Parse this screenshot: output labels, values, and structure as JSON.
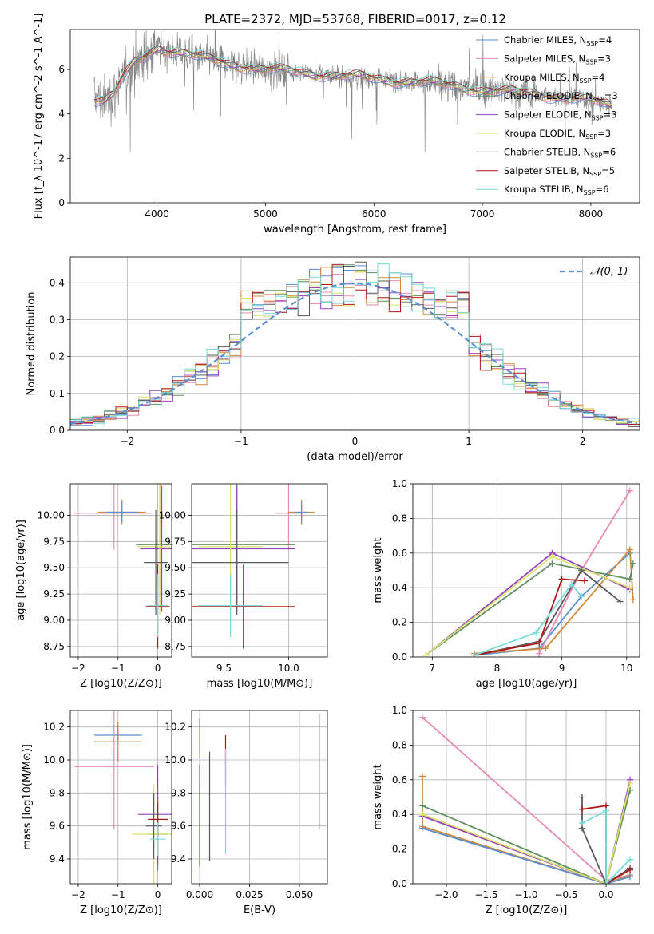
{
  "figure_title": "PLATE=2372, MJD=53768, FIBERID=0017, z=0.12",
  "colors": {
    "Chabrier MILES": "#5b8fd0",
    "Salpeter MILES": "#e88ab5",
    "Kroupa MILES": "#d08a3a",
    "Chabrier ELODIE": "#5f8f5f",
    "Salpeter ELODIE": "#9a3fbf",
    "Kroupa ELODIE": "#d9e36a",
    "Chabrier STELIB": "#5a5a5a",
    "Salpeter STELIB": "#b01818",
    "Kroupa STELIB": "#79dada",
    "data": "#808080",
    "normal": "#5b8fd0"
  },
  "chart_data": [
    {
      "id": "spectrum",
      "type": "line",
      "title": "PLATE=2372, MJD=53768, FIBERID=0017, z=0.12",
      "xlabel": "wavelength [Angstrom, rest frame]",
      "ylabel": "Flux [f_λ 10^-17 erg cm^-2 s^-1 A^-1]",
      "xlim": [
        3200,
        8450
      ],
      "ylim": [
        0,
        7.8
      ],
      "xticks": [
        4000,
        5000,
        6000,
        7000,
        8000
      ],
      "yticks": [
        0,
        2,
        4,
        6
      ],
      "legend": [
        "Chabrier MILES, N_SSP=4",
        "Salpeter MILES, N_SSP=3",
        "Kroupa MILES, N_SSP=4",
        "Chabrier ELODIE, N_SSP=3",
        "Salpeter ELODIE, N_SSP=3",
        "Kroupa ELODIE, N_SSP=3",
        "Chabrier STELIB, N_SSP=6",
        "Salpeter STELIB, N_SSP=5",
        "Kroupa STELIB, N_SSP=6"
      ],
      "legend_placement": "right",
      "continuum": {
        "x": [
          3420,
          3500,
          3600,
          3700,
          3800,
          3900,
          4000,
          4200,
          4500,
          5000,
          5500,
          6000,
          6500,
          7000,
          7200,
          7500,
          8000,
          8200
        ],
        "y": [
          4.7,
          4.6,
          4.9,
          5.7,
          6.3,
          6.6,
          7.0,
          6.8,
          6.4,
          6.0,
          5.8,
          5.6,
          5.4,
          5.1,
          5.0,
          4.9,
          4.6,
          4.4
        ]
      }
    },
    {
      "id": "residuals",
      "type": "step",
      "xlabel": "(data-model)/error",
      "ylabel": "Normed distribution",
      "xlim": [
        -2.5,
        2.5
      ],
      "ylim": [
        0,
        0.47
      ],
      "xticks": [
        -2,
        -1,
        0,
        1,
        2
      ],
      "yticks": [
        0.0,
        0.1,
        0.2,
        0.3,
        0.4
      ],
      "legend": [
        "N(0,1)"
      ],
      "legend_placement": "top-right",
      "series_count": 9
    },
    {
      "id": "age_vs_Z",
      "type": "errorbar",
      "xlabel": "Z [log10(Z/Z⊙)]",
      "ylabel": "age  [log10(age/yr)]",
      "xlim": [
        -2.2,
        0.35
      ],
      "ylim": [
        8.65,
        10.3
      ],
      "xticks": [
        -2,
        -1,
        0
      ],
      "yticks": [
        8.75,
        9.0,
        9.25,
        9.5,
        9.75,
        10.0
      ],
      "points": [
        {
          "model": "Salpeter MILES",
          "x": -1.1,
          "xerr": 1.0,
          "y": 10.02,
          "yerr": 0.35
        },
        {
          "model": "Kroupa MILES",
          "x": -0.9,
          "xerr": 0.6,
          "y": 10.03,
          "yerr": 0.12
        },
        {
          "model": "Chabrier MILES",
          "x": -0.9,
          "xerr": 0.4,
          "y": 10.03,
          "yerr": 0.1
        },
        {
          "model": "Chabrier ELODIE",
          "x": 0.05,
          "xerr": 0.6,
          "y": 9.72,
          "yerr": 0.6
        },
        {
          "model": "Salpeter ELODIE",
          "x": 0.1,
          "xerr": 0.55,
          "y": 9.68,
          "yerr": 0.6
        },
        {
          "model": "Kroupa ELODIE",
          "x": 0.05,
          "xerr": 0.55,
          "y": 9.7,
          "yerr": 0.65
        },
        {
          "model": "Chabrier STELIB",
          "x": -0.05,
          "xerr": 0.3,
          "y": 9.55,
          "yerr": 0.5
        },
        {
          "model": "Salpeter STELIB",
          "x": 0.0,
          "xerr": 0.3,
          "y": 9.13,
          "yerr": 0.4
        },
        {
          "model": "Kroupa STELIB",
          "x": 0.0,
          "xerr": 0.25,
          "y": 9.14,
          "yerr": 0.3
        }
      ]
    },
    {
      "id": "age_vs_mass",
      "type": "errorbar",
      "xlabel": "mass [log10(M/M⊙)]",
      "ylabel": "",
      "xlim": [
        9.25,
        10.3
      ],
      "ylim": [
        8.65,
        10.3
      ],
      "xticks": [
        9.5,
        10.0
      ],
      "yticks": [
        8.75,
        9.0,
        9.25,
        9.5,
        9.75,
        10.0
      ],
      "points": [
        {
          "model": "Salpeter MILES",
          "x": 10.0,
          "xerr": 0.1,
          "y": 10.02,
          "yerr": 0.35
        },
        {
          "model": "Kroupa MILES",
          "x": 10.1,
          "xerr": 0.1,
          "y": 10.03,
          "yerr": 0.12
        },
        {
          "model": "Chabrier MILES",
          "x": 10.1,
          "xerr": 0.05,
          "y": 10.03,
          "yerr": 0.1
        },
        {
          "model": "Chabrier ELODIE",
          "x": 9.6,
          "xerr": 0.45,
          "y": 9.72,
          "yerr": 0.6
        },
        {
          "model": "Salpeter ELODIE",
          "x": 9.6,
          "xerr": 0.45,
          "y": 9.68,
          "yerr": 0.6
        },
        {
          "model": "Kroupa ELODIE",
          "x": 9.55,
          "xerr": 0.25,
          "y": 9.7,
          "yerr": 0.7
        },
        {
          "model": "Chabrier STELIB",
          "x": 9.6,
          "xerr": 0.4,
          "y": 9.55,
          "yerr": 0.5
        },
        {
          "model": "Salpeter STELIB",
          "x": 9.65,
          "xerr": 0.4,
          "y": 9.13,
          "yerr": 0.4
        },
        {
          "model": "Kroupa STELIB",
          "x": 9.55,
          "xerr": 0.25,
          "y": 9.14,
          "yerr": 0.3
        }
      ]
    },
    {
      "id": "weight_vs_age",
      "type": "line",
      "xlabel": "age  [log10(age/yr)]",
      "ylabel": "mass weight",
      "xlim": [
        6.7,
        10.2
      ],
      "ylim": [
        0,
        1.0
      ],
      "xticks": [
        7,
        8,
        9,
        10
      ],
      "yticks": [
        0.0,
        0.2,
        0.4,
        0.6,
        0.8,
        1.0
      ],
      "series": [
        {
          "model": "Chabrier MILES",
          "x": [
            7.65,
            8.65,
            9.3,
            10.05
          ],
          "y": [
            0.01,
            0.05,
            0.35,
            0.6
          ]
        },
        {
          "model": "Salpeter MILES",
          "x": [
            8.65,
            9.3,
            10.05
          ],
          "y": [
            0.02,
            0.5,
            0.96
          ]
        },
        {
          "model": "Kroupa MILES",
          "x": [
            7.65,
            8.75,
            10.05,
            10.1
          ],
          "y": [
            0.02,
            0.05,
            0.62,
            0.33
          ]
        },
        {
          "model": "Chabrier ELODIE",
          "x": [
            6.9,
            8.85,
            10.05,
            10.1
          ],
          "y": [
            0.01,
            0.54,
            0.45,
            0.54
          ]
        },
        {
          "model": "Salpeter ELODIE",
          "x": [
            6.9,
            8.85,
            10.05
          ],
          "y": [
            0.01,
            0.6,
            0.39
          ]
        },
        {
          "model": "Kroupa ELODIE",
          "x": [
            6.9,
            8.85,
            10.05
          ],
          "y": [
            0.01,
            0.58,
            0.4
          ]
        },
        {
          "model": "Chabrier STELIB",
          "x": [
            7.65,
            8.65,
            9.3,
            9.9
          ],
          "y": [
            0.01,
            0.09,
            0.5,
            0.32
          ]
        },
        {
          "model": "Salpeter STELIB",
          "x": [
            7.65,
            8.65,
            9.0,
            9.35
          ],
          "y": [
            0.01,
            0.08,
            0.45,
            0.44
          ]
        },
        {
          "model": "Kroupa STELIB",
          "x": [
            7.65,
            8.6,
            9.15,
            9.3
          ],
          "y": [
            0.01,
            0.14,
            0.42,
            0.35
          ]
        }
      ]
    },
    {
      "id": "mass_vs_Z",
      "type": "errorbar",
      "xlabel": "Z [log10(Z/Z⊙)]",
      "ylabel": "mass [log10(M/M⊙)]",
      "xlim": [
        -2.2,
        0.35
      ],
      "ylim": [
        9.25,
        10.3
      ],
      "xticks": [
        -2,
        -1,
        0
      ],
      "yticks": [
        9.4,
        9.6,
        9.8,
        10.0,
        10.2
      ],
      "points": [
        {
          "model": "Chabrier MILES",
          "x": -1.0,
          "xerr": 0.6,
          "y": 10.15,
          "yerr": 0.05
        },
        {
          "model": "Salpeter MILES",
          "x": -1.1,
          "xerr": 1.0,
          "y": 9.96,
          "yerr": 0.38
        },
        {
          "model": "Kroupa MILES",
          "x": -1.0,
          "xerr": 0.6,
          "y": 10.11,
          "yerr": 0.12
        },
        {
          "model": "Chabrier ELODIE",
          "x": 0.0,
          "xerr": 0.25,
          "y": 9.55,
          "yerr": 0.22
        },
        {
          "model": "Salpeter ELODIE",
          "x": 0.0,
          "xerr": 0.5,
          "y": 9.67,
          "yerr": 0.3
        },
        {
          "model": "Kroupa ELODIE",
          "x": -0.1,
          "xerr": 0.55,
          "y": 9.55,
          "yerr": 0.3
        },
        {
          "model": "Chabrier STELIB",
          "x": -0.1,
          "xerr": 0.2,
          "y": 9.6,
          "yerr": 0.2
        },
        {
          "model": "Salpeter STELIB",
          "x": 0.0,
          "xerr": 0.25,
          "y": 9.64,
          "yerr": 0.1
        },
        {
          "model": "Kroupa STELIB",
          "x": 0.0,
          "xerr": 0.2,
          "y": 9.52,
          "yerr": 0.1
        }
      ]
    },
    {
      "id": "mass_vs_ebv",
      "type": "errorbar",
      "xlabel": "E(B-V)",
      "ylabel": "",
      "xlim": [
        -0.004,
        0.064
      ],
      "ylim": [
        9.25,
        10.3
      ],
      "xticks": [
        0.0,
        0.025,
        0.05
      ],
      "xtick_labels": [
        "0.000",
        "0.025",
        "0.050"
      ],
      "yticks": [
        9.4,
        9.6,
        9.8,
        10.0,
        10.2
      ],
      "points": [
        {
          "model": "Chabrier MILES",
          "x": 0.0,
          "y": 10.15,
          "yerr": 0.1
        },
        {
          "model": "Kroupa MILES",
          "x": 0.0,
          "y": 10.11,
          "yerr": 0.1
        },
        {
          "model": "Salpeter MILES",
          "x": 0.06,
          "y": 9.93,
          "yerr": 0.35
        },
        {
          "model": "Kroupa ELODIE",
          "x": 0.0,
          "y": 9.55,
          "yerr": 0.28
        },
        {
          "model": "Salpeter ELODIE",
          "x": 0.0,
          "y": 9.67,
          "yerr": 0.3
        },
        {
          "model": "Chabrier ELODIE",
          "x": 0.0,
          "y": 9.6,
          "yerr": 0.25
        },
        {
          "model": "Chabrier STELIB",
          "x": 0.005,
          "y": 9.72,
          "yerr": 0.33
        },
        {
          "model": "Salpeter STELIB",
          "x": 0.013,
          "y": 10.0,
          "yerr": 0.15
        },
        {
          "model": "Kroupa STELIB",
          "x": 0.013,
          "y": 9.75,
          "yerr": 0.32
        }
      ]
    },
    {
      "id": "weight_vs_Z",
      "type": "line",
      "xlabel": "Z [log10(Z/Z⊙)]",
      "ylabel": "mass weight",
      "xlim": [
        -2.42,
        0.42
      ],
      "ylim": [
        0,
        1.0
      ],
      "xticks": [
        -2.0,
        -1.5,
        -1.0,
        -0.5,
        0.0
      ],
      "xtick_labels": [
        "−2.0",
        "−1.5",
        "−1.0",
        "−0.5",
        "0.0"
      ],
      "yticks": [
        0.0,
        0.2,
        0.4,
        0.6,
        0.8,
        1.0
      ],
      "series": [
        {
          "model": "Salpeter MILES",
          "x": [
            -2.3,
            0.0,
            0.3
          ],
          "y": [
            0.96,
            0.02,
            0.05
          ]
        },
        {
          "model": "Kroupa MILES",
          "x": [
            -2.3,
            -2.3,
            0.0,
            0.3
          ],
          "y": [
            0.62,
            0.33,
            0.0,
            0.05
          ]
        },
        {
          "model": "Chabrier MILES",
          "x": [
            -2.3,
            0.0,
            0.3
          ],
          "y": [
            0.32,
            0.0,
            0.04
          ]
        },
        {
          "model": "Chabrier ELODIE",
          "x": [
            -2.3,
            0.0,
            0.3,
            0.3
          ],
          "y": [
            0.45,
            0.0,
            0.54,
            0.54
          ]
        },
        {
          "model": "Salpeter ELODIE",
          "x": [
            -2.3,
            0.0,
            0.3
          ],
          "y": [
            0.39,
            0.0,
            0.6
          ]
        },
        {
          "model": "Kroupa ELODIE",
          "x": [
            -2.3,
            0.0,
            0.3
          ],
          "y": [
            0.4,
            0.0,
            0.58
          ]
        },
        {
          "model": "Chabrier STELIB",
          "x": [
            -0.3,
            -0.3,
            0.0,
            0.3
          ],
          "y": [
            0.5,
            0.32,
            0.0,
            0.09
          ]
        },
        {
          "model": "Salpeter STELIB",
          "x": [
            -0.3,
            0.0,
            0.0,
            0.3
          ],
          "y": [
            0.43,
            0.45,
            0.0,
            0.08
          ]
        },
        {
          "model": "Kroupa STELIB",
          "x": [
            -0.3,
            0.0,
            0.0,
            0.3
          ],
          "y": [
            0.35,
            0.42,
            0.0,
            0.14
          ]
        }
      ]
    }
  ]
}
